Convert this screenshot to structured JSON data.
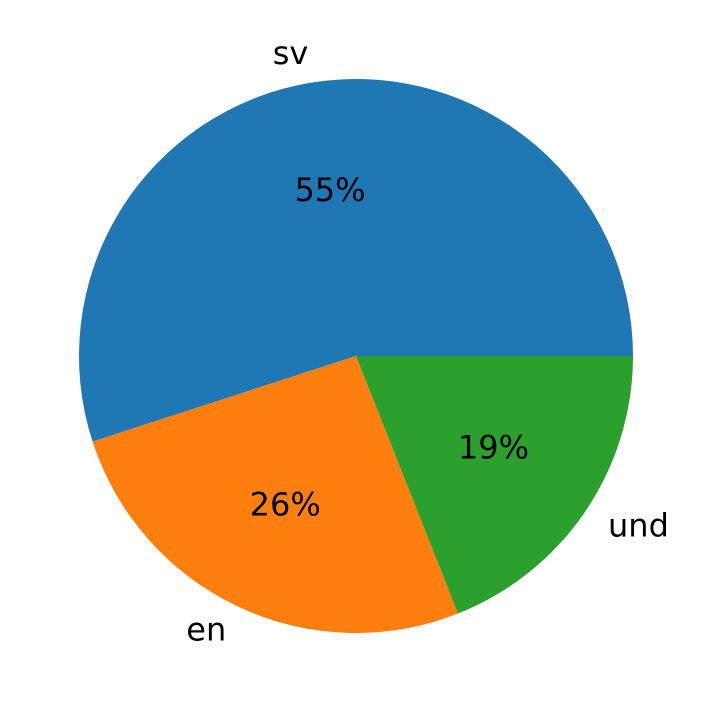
{
  "chart_data": {
    "type": "pie",
    "categories": [
      "sv",
      "en",
      "und"
    ],
    "values": [
      55,
      26,
      19
    ],
    "value_labels": [
      "55%",
      "26%",
      "19%"
    ],
    "colors": [
      "#1f77b4",
      "#ff7f0e",
      "#2ca02c"
    ]
  }
}
